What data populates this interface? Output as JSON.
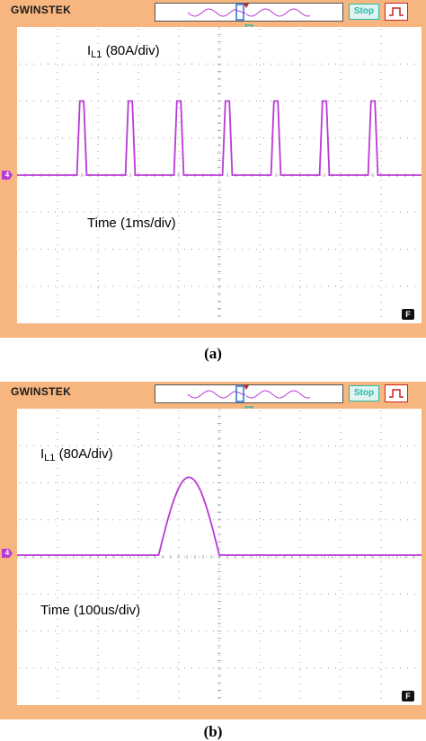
{
  "panel_a": {
    "brand": "GWINSTEK",
    "stop_label": "Stop",
    "channel_marker": "4",
    "trace_label_prefix": "I",
    "trace_label_sub": "L1",
    "trace_label_suffix": " (80A/div)",
    "time_label": "Time (1ms/div)",
    "badge": "F",
    "caption": "(a)"
  },
  "panel_b": {
    "brand": "GWINSTEK",
    "stop_label": "Stop",
    "channel_marker": "4",
    "trace_label_prefix": "I",
    "trace_label_sub": "L1",
    "trace_label_suffix": " (80A/div)",
    "time_label": "Time (100us/div)",
    "badge": "F",
    "caption": "(b)"
  },
  "colors": {
    "bezel": "#f7b57f",
    "trace": "#b93ad6",
    "grid": "#9a9a9a",
    "stop": "#2ab9a8",
    "trigger": "#cc2222"
  },
  "chart_data": [
    {
      "type": "line",
      "title": "I L1 (80A/div)",
      "xlabel": "Time (1ms/div)",
      "x_divisions": 10,
      "y_divisions": 8,
      "baseline_div": 2.5,
      "series": [
        {
          "name": "I L1",
          "pulse_centers_div": [
            1.6,
            2.8,
            4.0,
            5.2,
            6.4,
            7.6,
            8.8
          ],
          "pulse_peak_div": 2.0,
          "pulse_width_div": 0.12
        }
      ]
    },
    {
      "type": "line",
      "title": "I L1 (80A/div)",
      "xlabel": "Time (100us/div)",
      "x_divisions": 10,
      "y_divisions": 8,
      "baseline_div": 2.5,
      "series": [
        {
          "name": "I L1",
          "pulse_start_div": 3.5,
          "pulse_end_div": 5.0,
          "pulse_peak_div": 2.1
        }
      ]
    }
  ]
}
